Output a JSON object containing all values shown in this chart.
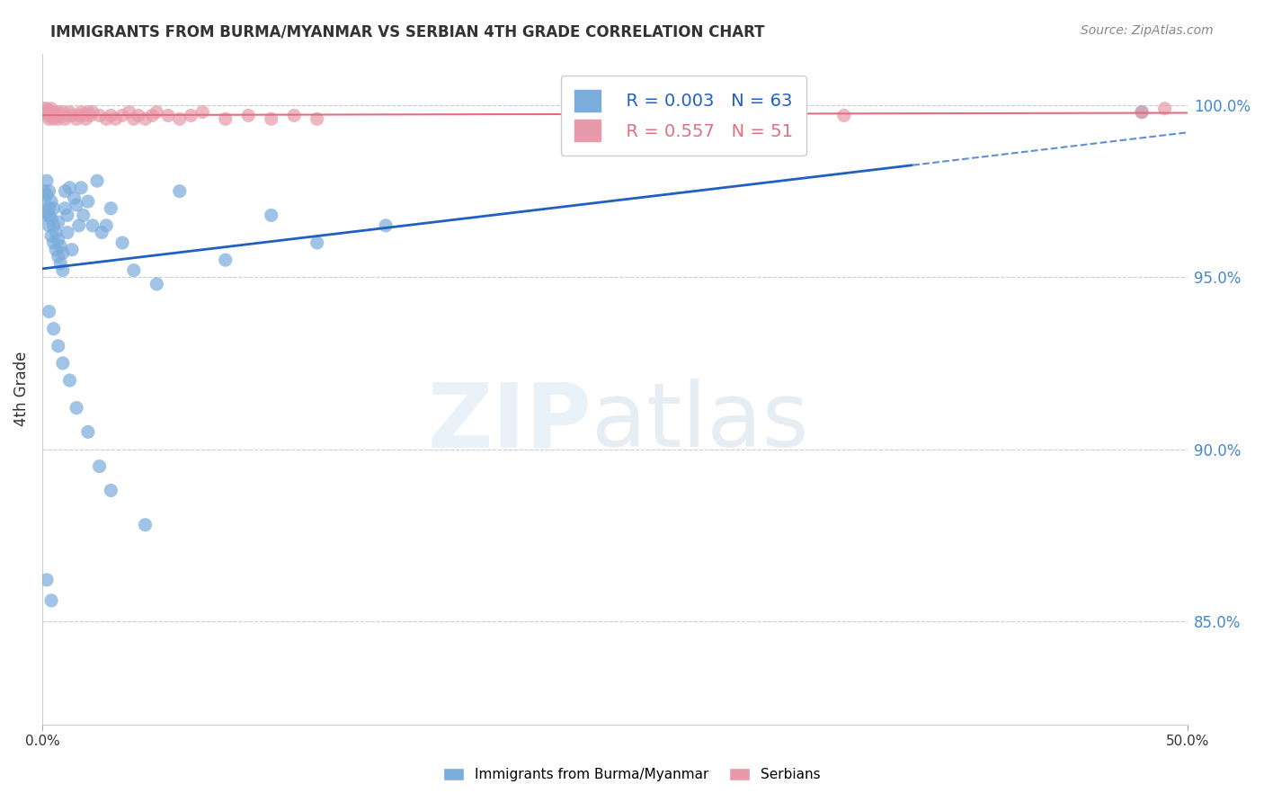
{
  "title": "IMMIGRANTS FROM BURMA/MYANMAR VS SERBIAN 4TH GRADE CORRELATION CHART",
  "source": "Source: ZipAtlas.com",
  "ylabel": "4th Grade",
  "ytick_labels": [
    "100.0%",
    "95.0%",
    "90.0%",
    "85.0%"
  ],
  "ytick_values": [
    1.0,
    0.95,
    0.9,
    0.85
  ],
  "xlim": [
    0.0,
    0.5
  ],
  "ylim": [
    0.82,
    1.015
  ],
  "legend_blue_r": "0.003",
  "legend_blue_n": "63",
  "legend_pink_r": "0.557",
  "legend_pink_n": "51",
  "blue_color": "#7aacdc",
  "pink_color": "#e89aaa",
  "blue_line_color": "#2060c0",
  "pink_line_color": "#e07080",
  "blue_scatter_x": [
    0.0,
    0.001,
    0.001,
    0.002,
    0.002,
    0.002,
    0.003,
    0.003,
    0.003,
    0.003,
    0.004,
    0.004,
    0.004,
    0.005,
    0.005,
    0.005,
    0.006,
    0.006,
    0.007,
    0.007,
    0.007,
    0.008,
    0.008,
    0.009,
    0.009,
    0.01,
    0.01,
    0.011,
    0.011,
    0.012,
    0.013,
    0.014,
    0.015,
    0.016,
    0.017,
    0.018,
    0.02,
    0.022,
    0.024,
    0.026,
    0.028,
    0.03,
    0.035,
    0.04,
    0.05,
    0.06,
    0.08,
    0.1,
    0.12,
    0.15,
    0.003,
    0.005,
    0.007,
    0.009,
    0.012,
    0.015,
    0.02,
    0.025,
    0.03,
    0.045,
    0.002,
    0.004,
    0.48
  ],
  "blue_scatter_y": [
    0.968,
    0.972,
    0.975,
    0.969,
    0.974,
    0.978,
    0.965,
    0.97,
    0.975,
    0.968,
    0.962,
    0.967,
    0.972,
    0.96,
    0.965,
    0.97,
    0.958,
    0.963,
    0.956,
    0.961,
    0.966,
    0.954,
    0.959,
    0.952,
    0.957,
    0.97,
    0.975,
    0.968,
    0.963,
    0.976,
    0.958,
    0.973,
    0.971,
    0.965,
    0.976,
    0.968,
    0.972,
    0.965,
    0.978,
    0.963,
    0.965,
    0.97,
    0.96,
    0.952,
    0.948,
    0.975,
    0.955,
    0.968,
    0.96,
    0.965,
    0.94,
    0.935,
    0.93,
    0.925,
    0.92,
    0.912,
    0.905,
    0.895,
    0.888,
    0.878,
    0.862,
    0.856,
    0.998
  ],
  "pink_scatter_x": [
    0.0,
    0.001,
    0.001,
    0.002,
    0.002,
    0.003,
    0.003,
    0.004,
    0.004,
    0.005,
    0.005,
    0.006,
    0.007,
    0.007,
    0.008,
    0.009,
    0.01,
    0.011,
    0.012,
    0.013,
    0.015,
    0.016,
    0.017,
    0.018,
    0.019,
    0.02,
    0.021,
    0.022,
    0.025,
    0.028,
    0.03,
    0.032,
    0.035,
    0.038,
    0.04,
    0.042,
    0.045,
    0.048,
    0.05,
    0.055,
    0.06,
    0.065,
    0.07,
    0.08,
    0.09,
    0.1,
    0.11,
    0.12,
    0.35,
    0.48,
    0.49
  ],
  "pink_scatter_y": [
    0.998,
    0.998,
    0.999,
    0.997,
    0.999,
    0.996,
    0.998,
    0.997,
    0.999,
    0.996,
    0.998,
    0.997,
    0.998,
    0.996,
    0.997,
    0.998,
    0.996,
    0.997,
    0.998,
    0.997,
    0.996,
    0.997,
    0.998,
    0.997,
    0.996,
    0.998,
    0.997,
    0.998,
    0.997,
    0.996,
    0.997,
    0.996,
    0.997,
    0.998,
    0.996,
    0.997,
    0.996,
    0.997,
    0.998,
    0.997,
    0.996,
    0.997,
    0.998,
    0.996,
    0.997,
    0.996,
    0.997,
    0.996,
    0.997,
    0.998,
    0.999
  ]
}
